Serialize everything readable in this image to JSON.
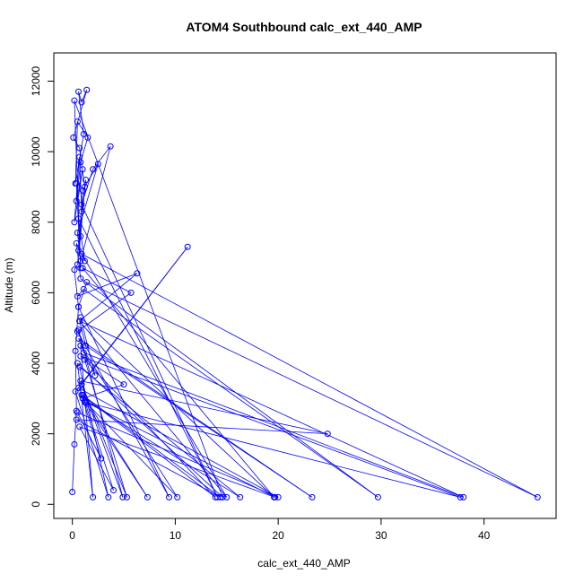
{
  "chart_data": {
    "type": "scatter",
    "title": "ATOM4 Southbound calc_ext_440_AMP",
    "xlabel": "calc_ext_440_AMP",
    "ylabel": "Altitude (m)",
    "xlim": [
      -1.8,
      47
    ],
    "ylim": [
      -400,
      12800
    ],
    "xticks": [
      0,
      10,
      20,
      30,
      40
    ],
    "yticks": [
      0,
      2000,
      4000,
      6000,
      8000,
      10000,
      12000
    ],
    "grid": false,
    "legend": "none",
    "color": "#0000ff",
    "series": [
      {
        "style": "points-and-lines",
        "x": [
          0.0,
          0.2,
          0.4,
          0.3,
          0.6,
          0.2,
          0.5,
          0.8,
          1.2,
          0.7,
          0.1,
          1.4,
          0.9,
          0.6,
          1.1,
          0.3,
          0.5,
          1.5,
          0.8,
          0.4,
          1.0,
          0.2,
          0.7,
          0.9,
          1.3,
          0.6,
          1.0,
          2.5,
          0.5,
          0.8,
          3.7,
          2.0,
          0.9,
          14.1,
          0.6,
          1.2,
          0.4,
          0.8,
          29.7,
          1.1,
          0.5,
          6.3,
          0.7,
          15.0,
          0.9,
          45.2,
          1.4,
          0.6,
          9.4,
          0.5,
          5.7,
          1.0,
          19.6,
          0.8,
          2.2,
          0.6,
          23.3,
          1.3,
          0.7,
          38.0,
          1.1,
          0.6,
          4.9,
          0.9,
          11.2,
          0.3,
          3.5,
          0.7,
          16.3,
          1.0,
          5.0,
          0.8,
          37.7,
          1.2,
          7.3,
          0.6,
          20.0,
          0.5,
          2.8,
          0.9,
          13.9,
          1.2,
          5.3,
          0.8,
          24.8,
          0.4,
          14.4,
          1.0,
          4.0,
          0.7,
          19.7,
          1.3,
          10.2,
          0.8,
          2.0,
          0.5,
          14.6,
          0.2,
          0.8,
          0.4
        ],
        "y": [
          350,
          1700,
          2650,
          4350,
          5600,
          6650,
          6800,
          7600,
          9000,
          10100,
          10400,
          11750,
          11400,
          11700,
          10500,
          9100,
          10850,
          10400,
          9700,
          8600,
          9500,
          8000,
          9850,
          8300,
          9200,
          7200,
          8900,
          9650,
          7700,
          6900,
          10150,
          9500,
          8500,
          200,
          8100,
          6900,
          7400,
          6400,
          200,
          6100,
          5900,
          6550,
          5200,
          200,
          7100,
          200,
          6300,
          5600,
          200,
          4900,
          6000,
          6700,
          200,
          5300,
          3650,
          4700,
          200,
          4500,
          5200,
          200,
          4300,
          4950,
          200,
          3400,
          7300,
          3200,
          200,
          3900,
          200,
          3000,
          3400,
          4200,
          200,
          2900,
          200,
          3300,
          200,
          2600,
          1300,
          3100,
          200,
          4100,
          200,
          3500,
          2000,
          2400,
          200,
          3100,
          400,
          2200,
          200,
          2900,
          200,
          4500,
          200,
          4000,
          200,
          11450,
          6700,
          9100
        ]
      }
    ]
  }
}
